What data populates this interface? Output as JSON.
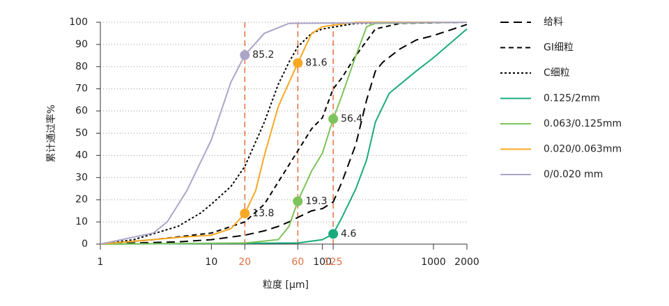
{
  "chart_data": {
    "type": "line",
    "x_label": "粒度 [μm]",
    "y_label": "累计通过率%",
    "xscale": "log",
    "xlim": [
      1,
      2000
    ],
    "ylim": [
      0,
      100
    ],
    "xticks": [
      1,
      10,
      20,
      60,
      100,
      125,
      1000,
      2000
    ],
    "yticks": [
      0,
      10,
      20,
      30,
      40,
      50,
      60,
      70,
      80,
      90,
      100
    ],
    "grid": true,
    "ref_lines": [
      20,
      60,
      125
    ],
    "ref_color": "#e07040",
    "series": [
      {
        "name": "给料",
        "color": "#000000",
        "dash": "long",
        "x": [
          1,
          2,
          5,
          10,
          20,
          30,
          40,
          50,
          60,
          80,
          100,
          125,
          150,
          200,
          250,
          300,
          350,
          500,
          700,
          1000,
          2000
        ],
        "values": [
          0,
          0.5,
          1,
          2,
          4,
          6,
          8,
          10,
          12,
          15,
          16,
          19,
          28,
          45,
          65,
          78,
          82,
          88,
          92,
          94,
          99
        ]
      },
      {
        "name": "GI细粒",
        "color": "#000000",
        "dash": "dash",
        "x": [
          1,
          3,
          10,
          20,
          30,
          40,
          60,
          80,
          100,
          125,
          150,
          200,
          300,
          500,
          2000
        ],
        "values": [
          0,
          2,
          5,
          10,
          18,
          28,
          42,
          52,
          57,
          70,
          75,
          85,
          97,
          99.5,
          100
        ]
      },
      {
        "name": "C细粒",
        "color": "#000000",
        "dash": "dot",
        "x": [
          1,
          2,
          5,
          8,
          10,
          15,
          20,
          30,
          40,
          50,
          60,
          80,
          100,
          200,
          2000
        ],
        "values": [
          0,
          2,
          8,
          14,
          18,
          26,
          35,
          55,
          72,
          82,
          89,
          95,
          97,
          99.5,
          100
        ]
      },
      {
        "name": "0.125/2mm",
        "color": "#1aab7c",
        "dash": "solid",
        "x": [
          1,
          60,
          100,
          125,
          150,
          200,
          250,
          300,
          400,
          700,
          1000,
          2000
        ],
        "values": [
          0,
          0.5,
          2,
          4.6,
          12,
          25,
          38,
          55,
          68,
          78,
          84,
          97
        ]
      },
      {
        "name": "0.063/0.125mm",
        "color": "#7cc35a",
        "dash": "solid",
        "x": [
          1,
          20,
          40,
          50,
          60,
          80,
          100,
          125,
          150,
          200,
          250,
          300,
          2000
        ],
        "values": [
          0,
          0.5,
          2,
          8,
          19.3,
          33,
          41,
          56.4,
          67,
          85,
          98,
          99.5,
          100
        ]
      },
      {
        "name": "0.020/0.063mm",
        "color": "#f7a823",
        "dash": "solid",
        "x": [
          1,
          5,
          10,
          15,
          20,
          25,
          30,
          40,
          60,
          80,
          100,
          200,
          2000
        ],
        "values": [
          0,
          3,
          4,
          7,
          13.8,
          24,
          40,
          62,
          81.6,
          95,
          98,
          100,
          100
        ]
      },
      {
        "name": "0/0.020 mm",
        "color": "#aaa4c8",
        "dash": "solid",
        "x": [
          1,
          3,
          4,
          6,
          8,
          10,
          15,
          20,
          30,
          50,
          2000
        ],
        "values": [
          0,
          5,
          10,
          24,
          37,
          47,
          73,
          85.2,
          95,
          99.5,
          100
        ]
      }
    ],
    "annotations": [
      {
        "x": 20,
        "value": 85.2,
        "color": "#aaa4c8"
      },
      {
        "x": 60,
        "value": 81.6,
        "color": "#f7a823"
      },
      {
        "x": 20,
        "value": 13.8,
        "color": "#f7a823"
      },
      {
        "x": 60,
        "value": 19.3,
        "color": "#7cc35a"
      },
      {
        "x": 125,
        "value": 56.4,
        "color": "#7cc35a"
      },
      {
        "x": 125,
        "value": 4.6,
        "color": "#1aab7c"
      }
    ]
  }
}
